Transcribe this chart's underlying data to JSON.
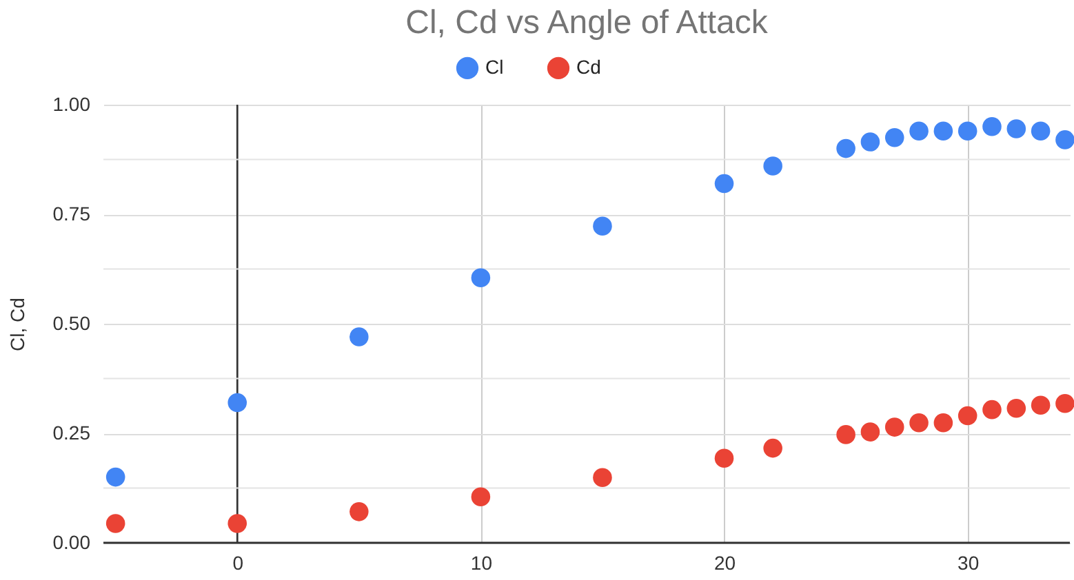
{
  "chart_data": {
    "type": "scatter",
    "title": "Cl, Cd vs Angle of Attack",
    "ylabel": "Cl, Cd",
    "x": [
      -5,
      0,
      5,
      10,
      15,
      20,
      22,
      25,
      26,
      27,
      28,
      29,
      30,
      31,
      32,
      33,
      34
    ],
    "series": [
      {
        "name": "Cl",
        "color": "#4285f4",
        "values": [
          0.15,
          0.32,
          0.47,
          0.605,
          0.723,
          0.82,
          0.86,
          0.9,
          0.915,
          0.925,
          0.94,
          0.94,
          0.94,
          0.95,
          0.945,
          0.94,
          0.92
        ]
      },
      {
        "name": "Cd",
        "color": "#ea4335",
        "values": [
          0.044,
          0.044,
          0.071,
          0.105,
          0.149,
          0.193,
          0.216,
          0.247,
          0.253,
          0.264,
          0.274,
          0.274,
          0.29,
          0.304,
          0.307,
          0.314,
          0.318
        ]
      }
    ],
    "xlim": [
      -5.5,
      34.2
    ],
    "xticks": [
      0,
      10,
      20,
      30
    ],
    "ylim": [
      0,
      1
    ],
    "yticks": [
      {
        "value": 0,
        "label": "0.00"
      },
      {
        "value": 0.125,
        "label": null
      },
      {
        "value": 0.25,
        "label": "0.25"
      },
      {
        "value": 0.375,
        "label": null
      },
      {
        "value": 0.5,
        "label": "0.50"
      },
      {
        "value": 0.625,
        "label": null
      },
      {
        "value": 0.75,
        "label": "0.75"
      },
      {
        "value": 0.875,
        "label": null
      },
      {
        "value": 1,
        "label": "1.00"
      }
    ],
    "ref_lines": [
      {
        "axis": "x",
        "value": 0,
        "label": null,
        "color": "#333333"
      }
    ],
    "grid": true,
    "legend": "top",
    "marker": "circle"
  }
}
